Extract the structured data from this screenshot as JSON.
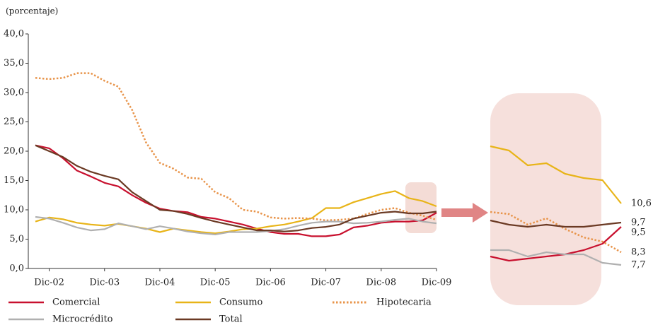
{
  "chart_data": [
    {
      "type": "line",
      "subtitle": "(porcentaje)",
      "categories": [
        null,
        "Dic-02",
        null,
        null,
        null,
        "Dic-03",
        null,
        null,
        null,
        "Dic-04",
        null,
        null,
        null,
        "Dic-05",
        null,
        null,
        null,
        "Dic-06",
        null,
        null,
        null,
        "Dic-07",
        null,
        null,
        null,
        "Dic-08",
        null,
        null,
        null,
        "Dic-09"
      ],
      "ylim": [
        0,
        40
      ],
      "yticks": [
        {
          "value": 0,
          "label": "0,0"
        },
        {
          "value": 5,
          "label": "5,0"
        },
        {
          "value": 10,
          "label": "10,0"
        },
        {
          "value": 15,
          "label": "15,0"
        },
        {
          "value": 20,
          "label": "20,0"
        },
        {
          "value": 25,
          "label": "25,0"
        },
        {
          "value": 30,
          "label": "30,0"
        },
        {
          "value": 35,
          "label": "35,0"
        },
        {
          "value": 40,
          "label": "40,0"
        }
      ],
      "series": [
        {
          "name": "Comercial",
          "color": "#c8102e",
          "style": "solid",
          "values": [
            21,
            20.5,
            18.8,
            16.7,
            15.7,
            14.6,
            14,
            12.5,
            11.2,
            10.2,
            9.8,
            9.6,
            8.8,
            8.5,
            8,
            7.5,
            6.8,
            6.2,
            5.9,
            5.9,
            5.5,
            5.5,
            5.8,
            7,
            7.3,
            7.8,
            8,
            8,
            8.2,
            9.5
          ]
        },
        {
          "name": "Consumo",
          "color": "#e8b418",
          "style": "solid",
          "values": [
            8,
            8.7,
            8.4,
            7.8,
            7.5,
            7.3,
            7.6,
            7.2,
            6.8,
            6.2,
            6.8,
            6.5,
            6.2,
            6,
            6.3,
            6.7,
            6.8,
            7.2,
            7.5,
            8,
            8.6,
            10.3,
            10.3,
            11.3,
            12,
            12.7,
            13.2,
            12,
            11.5,
            10.6
          ]
        },
        {
          "name": "Hipotecaria",
          "color": "#e8944a",
          "style": "dotted",
          "values": [
            32.5,
            32.3,
            32.5,
            33.3,
            33.3,
            32,
            31,
            27,
            21.5,
            18,
            17,
            15.5,
            15.3,
            13,
            12,
            10,
            9.7,
            8.7,
            8.5,
            8.6,
            8.5,
            8.2,
            8.3,
            8.5,
            9.3,
            10,
            10.3,
            9.5,
            9,
            8.3
          ]
        },
        {
          "name": "Microcrédito",
          "color": "#b0b0b0",
          "style": "solid",
          "values": [
            8.8,
            8.5,
            7.8,
            7,
            6.5,
            6.7,
            7.7,
            7.2,
            6.7,
            7.2,
            6.8,
            6.3,
            6,
            5.8,
            6.2,
            6.2,
            6.2,
            6.4,
            6.7,
            7.3,
            7.8,
            8,
            8,
            7.7,
            7.8,
            8,
            8.3,
            8.5,
            8,
            7.7
          ]
        },
        {
          "name": "Total",
          "color": "#6b3a24",
          "style": "solid",
          "values": [
            21,
            20,
            19,
            17.5,
            16.5,
            15.8,
            15.2,
            13,
            11.5,
            10,
            9.8,
            9.3,
            8.6,
            8,
            7.5,
            7,
            6.5,
            6.5,
            6.3,
            6.5,
            6.9,
            7.1,
            7.5,
            8.5,
            9,
            9.5,
            9.7,
            9.4,
            9.4,
            9.7
          ]
        }
      ]
    },
    {
      "type": "line",
      "ylim": [
        5.8,
        15.8
      ],
      "series": [
        {
          "color": "#c8102e",
          "style": "solid",
          "values": [
            8.1,
            7.9,
            8.0,
            8.1,
            8.2,
            8.4,
            8.7,
            9.5
          ],
          "value_labels": [
            null,
            null,
            null,
            null,
            null,
            null,
            null,
            "9,5"
          ]
        },
        {
          "color": "#e8b418",
          "style": "solid",
          "values": [
            13.3,
            13.1,
            12.4,
            12.5,
            12.0,
            11.8,
            11.7,
            10.6
          ],
          "value_labels": [
            null,
            null,
            null,
            null,
            null,
            null,
            null,
            "10,6"
          ]
        },
        {
          "color": "#e8944a",
          "style": "dotted",
          "values": [
            10.2,
            10.1,
            9.6,
            9.9,
            9.4,
            9.0,
            8.8,
            8.3
          ],
          "value_labels": [
            null,
            null,
            null,
            null,
            null,
            null,
            null,
            "8,3"
          ]
        },
        {
          "color": "#b0b0b0",
          "style": "solid",
          "values": [
            8.4,
            8.4,
            8.1,
            8.3,
            8.2,
            8.2,
            7.8,
            7.7
          ],
          "value_labels": [
            null,
            null,
            null,
            null,
            null,
            null,
            null,
            "7,7"
          ]
        },
        {
          "color": "#6b3a24",
          "style": "solid",
          "values": [
            9.8,
            9.6,
            9.5,
            9.6,
            9.5,
            9.5,
            9.6,
            9.7
          ],
          "value_labels": [
            null,
            null,
            null,
            null,
            null,
            null,
            null,
            "9,7"
          ]
        }
      ]
    }
  ]
}
